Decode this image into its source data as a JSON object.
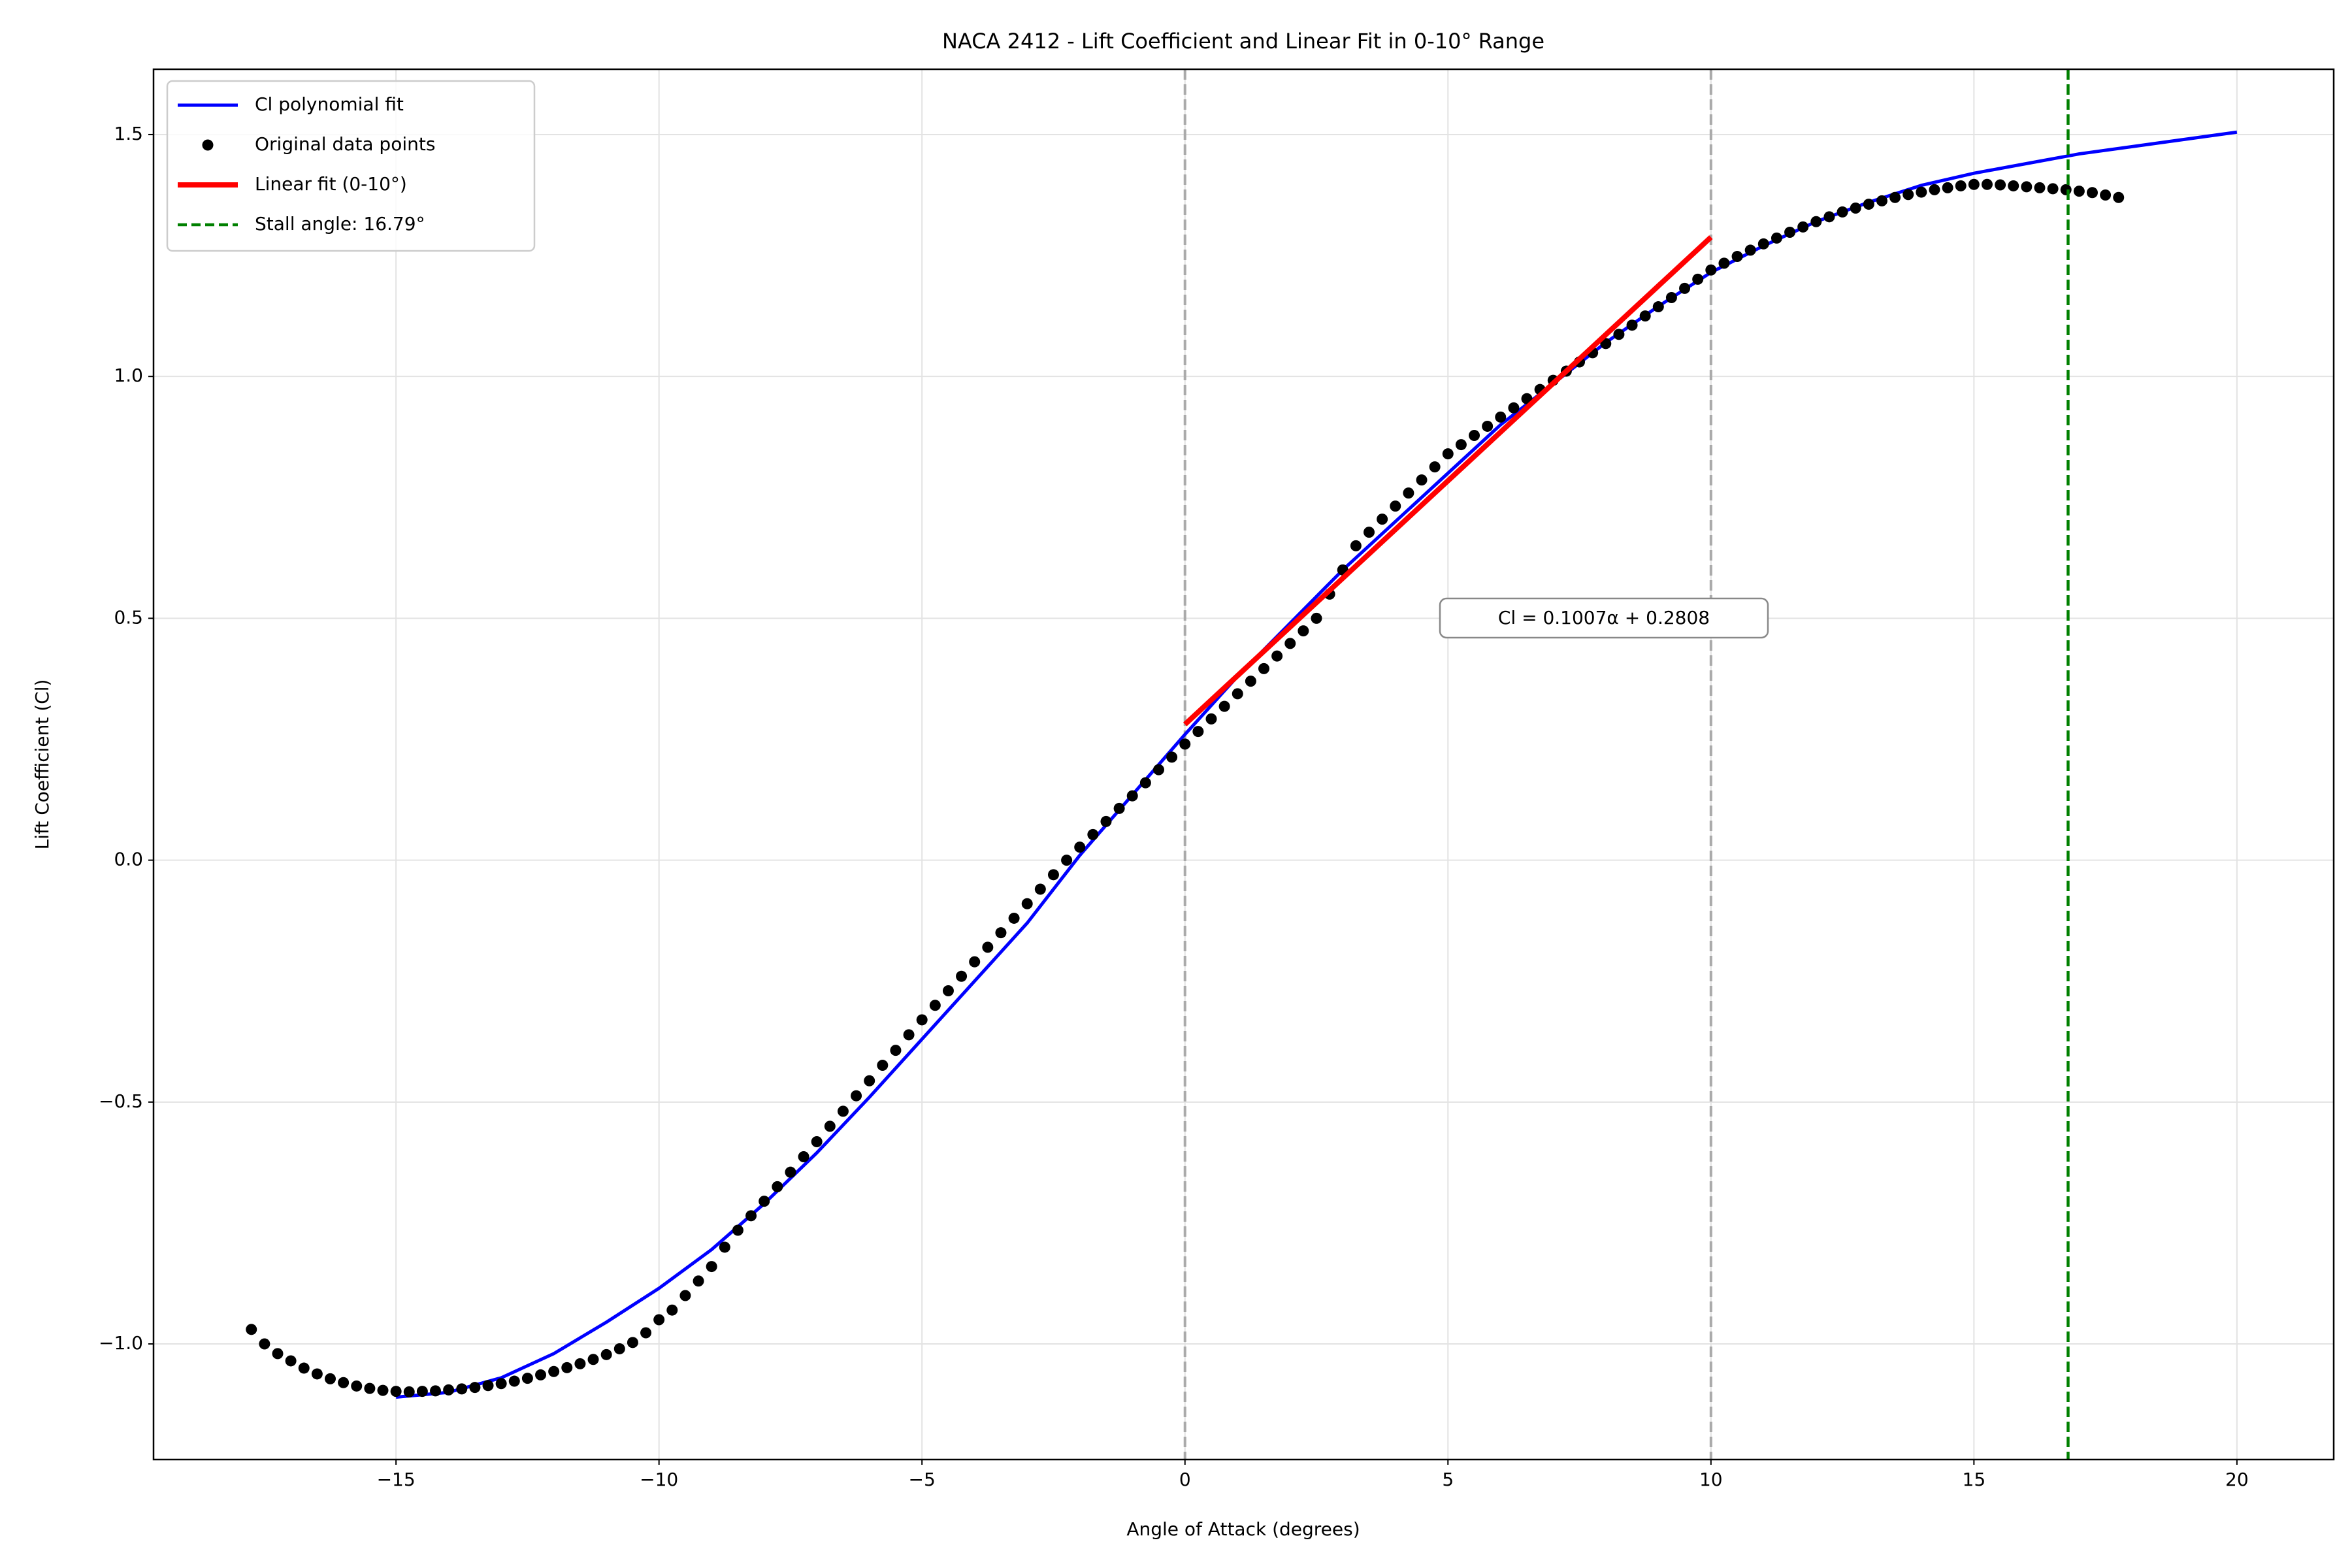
{
  "chart_data": {
    "type": "line",
    "title": "NACA 2412 - Lift Coefficient and Linear Fit in 0-10° Range",
    "x_label": "Angle of Attack (degrees)",
    "y_label": "Lift Coefficient (Cl)",
    "annotation": "Cl = 0.1007α + 0.2808",
    "xlim": [
      -19.61,
      21.84
    ],
    "ylim": [
      -1.239,
      1.635
    ],
    "xticks": [
      {
        "value": -15,
        "label": "−15"
      },
      {
        "value": -10,
        "label": "−10"
      },
      {
        "value": -5,
        "label": "−5"
      },
      0,
      5,
      10,
      15,
      20
    ],
    "yticks": [
      {
        "value": -1.0,
        "label": "−1.0"
      },
      {
        "value": -0.5,
        "label": "−0.5"
      },
      {
        "value": 0.0,
        "label": "0.0"
      },
      {
        "value": 0.5,
        "label": "0.5"
      },
      {
        "value": 1.0,
        "label": "1.0"
      },
      {
        "value": 1.5,
        "label": "1.5"
      }
    ],
    "grid": true,
    "legend": "upper left",
    "vlines": [
      0,
      10
    ],
    "vline_color": "#aaaaaa",
    "series": [
      {
        "name": "Cl polynomial fit",
        "kind": "line",
        "color": "#0000ff",
        "x": [
          -15,
          -14,
          -13,
          -12,
          -11,
          -10,
          -9,
          -8,
          -7,
          -6,
          -5,
          -4,
          -3,
          -2,
          -1,
          0,
          1,
          2,
          3,
          4,
          5,
          6,
          7,
          8,
          9,
          10,
          11,
          12,
          13,
          14,
          15,
          16,
          17,
          18,
          19,
          20
        ],
        "values": [
          -1.11,
          -1.1,
          -1.07,
          -1.02,
          -0.955,
          -0.885,
          -0.805,
          -0.71,
          -0.605,
          -0.49,
          -0.37,
          -0.25,
          -0.13,
          0.01,
          0.135,
          0.26,
          0.38,
          0.49,
          0.6,
          0.7,
          0.8,
          0.9,
          0.985,
          1.07,
          1.145,
          1.215,
          1.27,
          1.32,
          1.36,
          1.395,
          1.42,
          1.44,
          1.46,
          1.475,
          1.49,
          1.505
        ]
      },
      {
        "name": "Original data points",
        "kind": "scatter",
        "color": "#000000",
        "x": [
          -17.75,
          -17.5,
          -17.25,
          -17,
          -16.75,
          -16.5,
          -16.25,
          -16,
          -15.75,
          -15.5,
          -15.25,
          -15,
          -14.75,
          -14.5,
          -14.25,
          -14,
          -13.75,
          -13.5,
          -13.25,
          -13,
          -12.75,
          -12.5,
          -12.25,
          -12,
          -11.75,
          -11.5,
          -11.25,
          -11,
          -10.75,
          -10.5,
          -10.25,
          -10,
          -9.75,
          -9.5,
          -9.25,
          -9,
          -8.75,
          -8.5,
          -8.25,
          -8,
          -7.75,
          -7.5,
          -7.25,
          -7,
          -6.75,
          -6.5,
          -6.25,
          -6,
          -5.75,
          -5.5,
          -5.25,
          -5,
          -4.75,
          -4.5,
          -4.25,
          -4,
          -3.75,
          -3.5,
          -3.25,
          -3,
          -2.75,
          -2.5,
          -2.25,
          -2,
          -1.75,
          -1.5,
          -1.25,
          -1,
          -0.75,
          -0.5,
          -0.25,
          0,
          0.25,
          0.5,
          0.75,
          1,
          1.25,
          1.5,
          1.75,
          2,
          2.25,
          2.5,
          2.75,
          3,
          3.25,
          3.5,
          3.75,
          4,
          4.25,
          4.5,
          4.75,
          5,
          5.25,
          5.5,
          5.75,
          6,
          6.25,
          6.5,
          6.75,
          7,
          7.25,
          7.5,
          7.75,
          8,
          8.25,
          8.5,
          8.75,
          9,
          9.25,
          9.5,
          9.75,
          10,
          10.25,
          10.5,
          10.75,
          11,
          11.25,
          11.5,
          11.75,
          12,
          12.25,
          12.5,
          12.75,
          13,
          13.25,
          13.5,
          13.75,
          14,
          14.25,
          14.5,
          14.75,
          15,
          15.25,
          15.5,
          15.75,
          16,
          16.25,
          16.5,
          16.75,
          17,
          17.25,
          17.5,
          17.75
        ],
        "values": [
          -0.97,
          -1.0,
          -1.02,
          -1.035,
          -1.05,
          -1.062,
          -1.072,
          -1.08,
          -1.087,
          -1.092,
          -1.096,
          -1.098,
          -1.099,
          -1.098,
          -1.097,
          -1.095,
          -1.093,
          -1.09,
          -1.086,
          -1.082,
          -1.077,
          -1.071,
          -1.064,
          -1.057,
          -1.049,
          -1.041,
          -1.032,
          -1.022,
          -1.01,
          -0.997,
          -0.977,
          -0.95,
          -0.93,
          -0.9,
          -0.87,
          -0.84,
          -0.8,
          -0.765,
          -0.735,
          -0.705,
          -0.675,
          -0.645,
          -0.613,
          -0.582,
          -0.55,
          -0.519,
          -0.487,
          -0.456,
          -0.424,
          -0.393,
          -0.361,
          -0.33,
          -0.3,
          -0.27,
          -0.24,
          -0.21,
          -0.18,
          -0.15,
          -0.12,
          -0.09,
          -0.06,
          -0.03,
          0.0,
          0.027,
          0.053,
          0.08,
          0.107,
          0.133,
          0.16,
          0.187,
          0.213,
          0.24,
          0.266,
          0.292,
          0.318,
          0.344,
          0.37,
          0.396,
          0.422,
          0.448,
          0.474,
          0.5,
          0.55,
          0.6,
          0.65,
          0.678,
          0.705,
          0.732,
          0.759,
          0.786,
          0.813,
          0.84,
          0.859,
          0.878,
          0.897,
          0.916,
          0.935,
          0.954,
          0.973,
          0.992,
          1.011,
          1.03,
          1.049,
          1.068,
          1.087,
          1.106,
          1.125,
          1.144,
          1.163,
          1.182,
          1.201,
          1.22,
          1.234,
          1.248,
          1.261,
          1.274,
          1.286,
          1.298,
          1.309,
          1.32,
          1.33,
          1.34,
          1.348,
          1.356,
          1.363,
          1.37,
          1.376,
          1.381,
          1.386,
          1.39,
          1.394,
          1.397,
          1.397,
          1.396,
          1.394,
          1.392,
          1.39,
          1.388,
          1.386,
          1.383,
          1.38,
          1.375,
          1.37
        ]
      },
      {
        "name": "Linear fit (0-10°)",
        "kind": "line",
        "color": "#ff0000",
        "x": [
          0,
          10
        ],
        "values": [
          0.2808,
          1.2878
        ]
      },
      {
        "name": "Stall angle: 16.79°",
        "kind": "vline",
        "color": "#008000",
        "x": 16.79
      }
    ]
  }
}
